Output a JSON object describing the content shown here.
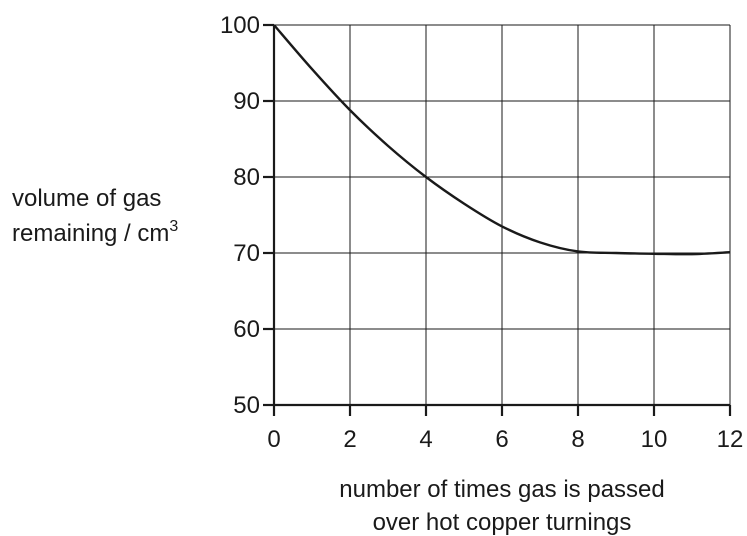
{
  "chart_data": {
    "type": "line",
    "title": "",
    "xlabel_lines": [
      "number of times gas is passed",
      "over hot copper turnings"
    ],
    "ylabel_lines": [
      "volume of gas",
      "remaining / cm"
    ],
    "ylabel_superscript": "3",
    "xlim": [
      0,
      12
    ],
    "ylim": [
      50,
      100
    ],
    "xticks": [
      0,
      2,
      4,
      6,
      8,
      10,
      12
    ],
    "yticks": [
      50,
      60,
      70,
      80,
      90,
      100
    ],
    "grid": true,
    "series": [
      {
        "x": [
          0,
          1,
          2,
          3,
          4,
          5,
          6,
          7,
          8,
          9,
          10,
          11,
          12
        ],
        "y": [
          100,
          94.2,
          88.8,
          84.1,
          80,
          76.5,
          73.5,
          71.4,
          70.2,
          70.0,
          69.9,
          69.85,
          70.1
        ]
      }
    ]
  }
}
